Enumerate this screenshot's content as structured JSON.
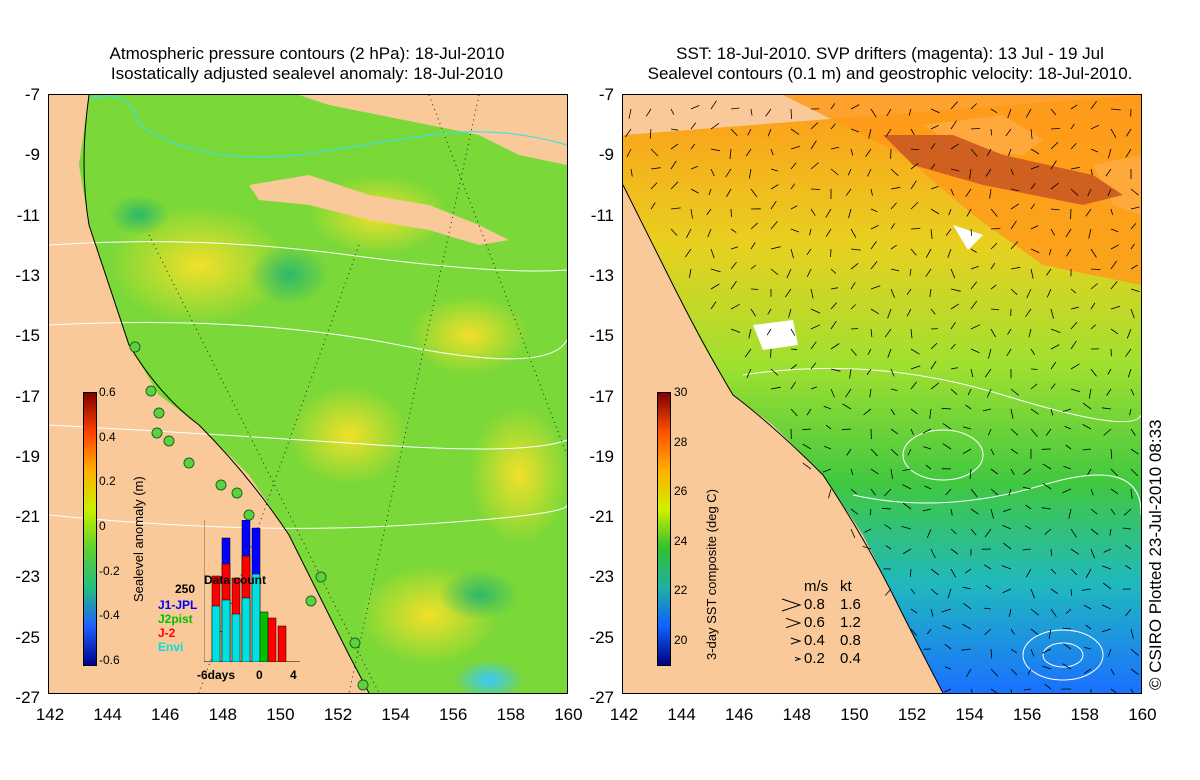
{
  "left_panel": {
    "title_line1": "Atmospheric pressure contours (2 hPa): 18-Jul-2010",
    "title_line2": "Isostatically adjusted sealevel anomaly: 18-Jul-2010",
    "colorbar": {
      "label": "Sealevel anomaly (m)",
      "ticks": [
        "0.6",
        "0.4",
        "0.2",
        "0",
        "-0.2",
        "-0.4",
        "-0.6"
      ],
      "colors": [
        "#7f0000",
        "#ff4000",
        "#ffb000",
        "#c8f000",
        "#60d030",
        "#20c080",
        "#2060ff",
        "#000090"
      ]
    },
    "data_count": {
      "title": "Data count",
      "ymax_label": "250",
      "x_labels": [
        "-6days",
        "0",
        "4"
      ],
      "legend": [
        {
          "label": "J1-JPL",
          "color": "#0000ff"
        },
        {
          "label": "J2pist",
          "color": "#00c000"
        },
        {
          "label": "J-2",
          "color": "#ff0000"
        },
        {
          "label": "Envi",
          "color": "#00e0e0"
        }
      ]
    }
  },
  "right_panel": {
    "title_line1": "SST: 18-Jul-2010. SVP drifters (magenta): 13 Jul - 19 Jul",
    "title_line2": "Sealevel contours (0.1 m) and geostrophic velocity: 18-Jul-2010.",
    "colorbar": {
      "label": "3-day SST composite (deg C)",
      "ticks": [
        "30",
        "28",
        "26",
        "24",
        "22",
        "20"
      ],
      "colors": [
        "#7f0000",
        "#ff5000",
        "#ffb000",
        "#d0f000",
        "#30c030",
        "#20b0a0",
        "#1060ff",
        "#000080"
      ]
    },
    "velocity_key": {
      "header_ms": "m/s",
      "header_kt": "kt",
      "rows": [
        {
          "ms": "0.8",
          "kt": "1.6"
        },
        {
          "ms": "0.6",
          "kt": "1.2"
        },
        {
          "ms": "0.4",
          "kt": "0.8"
        },
        {
          "ms": "0.2",
          "kt": "0.4"
        }
      ]
    }
  },
  "axes": {
    "y_ticks": [
      "-7",
      "-9",
      "-11",
      "-13",
      "-15",
      "-17",
      "-19",
      "-21",
      "-23",
      "-25",
      "-27"
    ],
    "x_ticks": [
      "142",
      "144",
      "146",
      "148",
      "150",
      "152",
      "154",
      "156",
      "158",
      "160"
    ]
  },
  "credit": "© CSIRO Plotted 23-Jul-2010 08:33",
  "colors": {
    "land": "#f9c99a",
    "ocean_green": "#6fd23a",
    "ocean_yellow": "#d8f030",
    "orange": "#ff9a1a",
    "contour": "#ffffff"
  }
}
